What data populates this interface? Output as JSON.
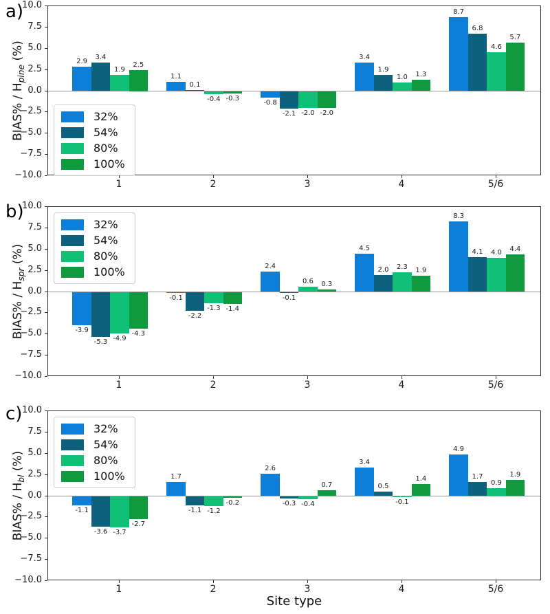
{
  "figure": {
    "xlabel": "Site type",
    "categories": [
      "1",
      "2",
      "3",
      "4",
      "5/6"
    ],
    "legend": [
      "32%",
      "54%",
      "80%",
      "100%"
    ],
    "colors": [
      "#0e7fd8",
      "#0d617c",
      "#10c077",
      "#0f9a40"
    ],
    "ytick_labels": [
      "10.0",
      "7.5",
      "5.0",
      "2.5",
      "0.0",
      "−2.5",
      "−5.0",
      "−7.5",
      "−10.0"
    ],
    "ylim": [
      -10,
      10
    ],
    "grid": "off"
  },
  "chart_data": [
    {
      "type": "bar",
      "panel": "a)",
      "ylabel": {
        "prefix": "BIAS% / H",
        "sub": "pine",
        "suffix": " (%)"
      },
      "categories": [
        "1",
        "2",
        "3",
        "4",
        "5/6"
      ],
      "legend_pos": "mid-left",
      "series": [
        {
          "name": "32%",
          "values": [
            2.9,
            1.1,
            -0.8,
            3.4,
            8.7
          ]
        },
        {
          "name": "54%",
          "values": [
            3.4,
            0.1,
            -2.1,
            1.9,
            6.8
          ]
        },
        {
          "name": "80%",
          "values": [
            1.9,
            -0.4,
            -2.0,
            1.0,
            4.6
          ]
        },
        {
          "name": "100%",
          "values": [
            2.5,
            -0.3,
            -2.0,
            1.3,
            5.7
          ]
        }
      ]
    },
    {
      "type": "bar",
      "panel": "b)",
      "ylabel": {
        "prefix": "BIAS% / H",
        "sub": "spr",
        "suffix": " (%)"
      },
      "categories": [
        "1",
        "2",
        "3",
        "4",
        "5/6"
      ],
      "legend_pos": "top-left",
      "series": [
        {
          "name": "32%",
          "values": [
            -3.9,
            -0.1,
            2.4,
            4.5,
            8.3
          ]
        },
        {
          "name": "54%",
          "values": [
            -5.3,
            -2.2,
            -0.1,
            2.0,
            4.1
          ]
        },
        {
          "name": "80%",
          "values": [
            -4.9,
            -1.3,
            0.6,
            2.3,
            4.0
          ]
        },
        {
          "name": "100%",
          "values": [
            -4.3,
            -1.4,
            0.3,
            1.9,
            4.4
          ]
        }
      ]
    },
    {
      "type": "bar",
      "panel": "c)",
      "ylabel": {
        "prefix": "BIAS% / H",
        "sub": "bl",
        "suffix": " (%)"
      },
      "categories": [
        "1",
        "2",
        "3",
        "4",
        "5/6"
      ],
      "legend_pos": "top-left",
      "series": [
        {
          "name": "32%",
          "values": [
            -1.1,
            1.7,
            2.6,
            3.4,
            4.9
          ]
        },
        {
          "name": "54%",
          "values": [
            -3.6,
            -1.1,
            -0.3,
            0.5,
            1.7
          ]
        },
        {
          "name": "80%",
          "values": [
            -3.7,
            -1.2,
            -0.4,
            -0.1,
            0.9
          ]
        },
        {
          "name": "100%",
          "values": [
            -2.7,
            -0.2,
            0.7,
            1.4,
            1.9
          ]
        }
      ]
    }
  ]
}
